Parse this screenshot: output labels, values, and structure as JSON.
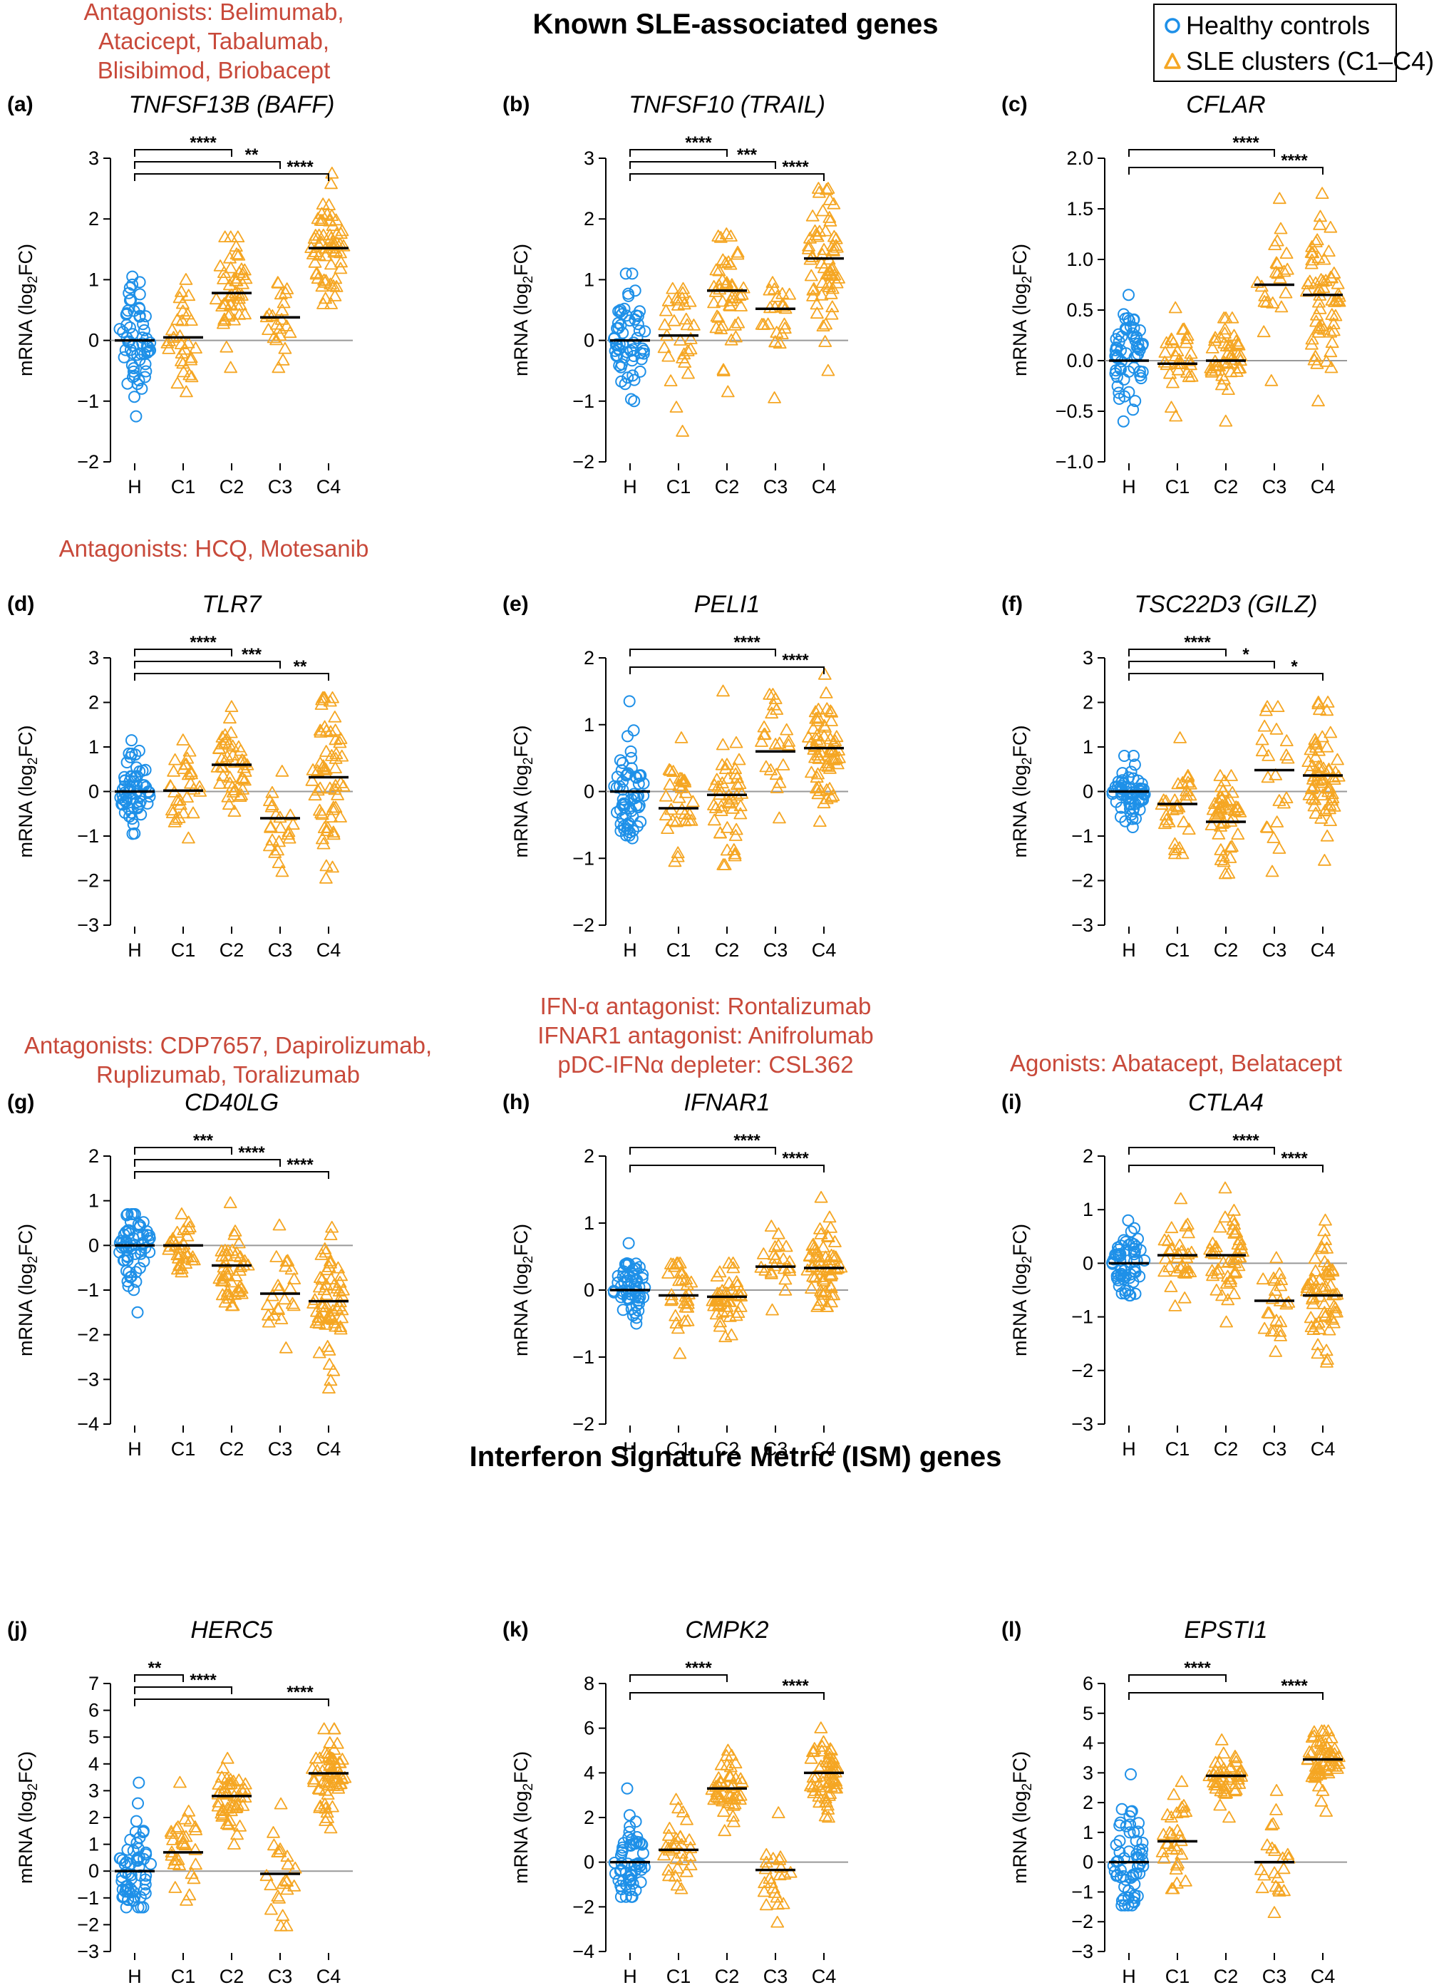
{
  "section_titles": {
    "known": "Known SLE-associated genes",
    "ism": "Interferon Signature Metric (ISM) genes"
  },
  "legend": {
    "healthy": "Healthy controls",
    "sle": "SLE clusters (C1–C4)"
  },
  "annotations": {
    "a": [
      "Antagonists: Belimumab,",
      "Atacicept, Tabalumab,",
      "Blisibimod, Briobacept"
    ],
    "d": [
      "Antagonists: HCQ, Motesanib"
    ],
    "g": [
      "Antagonists: CDP7657, Dapirolizumab,",
      "Ruplizumab, Toralizumab"
    ],
    "h": [
      "IFN-α antagonist: Rontalizumab",
      "IFNAR1 antagonist: Anifrolumab",
      "pDC-IFNα depleter: CSL362"
    ],
    "i": [
      "Agonists: Abatacept, Belatacept"
    ]
  },
  "colors": {
    "healthy": "#1e90e8",
    "sle": "#f5a623",
    "annotation": "#c8493a",
    "mean_line": "#000000",
    "zero_line": "#999999"
  },
  "chart_data": [
    {
      "type": "scatter",
      "panel": "(a)",
      "title": "TNFSF13B (BAFF)",
      "ylabel": "mRNA (log2FC)",
      "categories": [
        "H",
        "C1",
        "C2",
        "C3",
        "C4"
      ],
      "ylim": [
        -2,
        3
      ],
      "yticks": [
        -2,
        -1,
        0,
        1,
        2,
        3
      ],
      "means": [
        0.0,
        0.05,
        0.78,
        0.38,
        1.52
      ],
      "ranges": [
        [
          -1.25,
          1.05
        ],
        [
          -0.85,
          1.0
        ],
        [
          -0.45,
          1.7
        ],
        [
          -0.45,
          0.95
        ],
        [
          0.6,
          2.75
        ]
      ],
      "counts": [
        60,
        30,
        45,
        22,
        60
      ],
      "significance": [
        {
          "from": "H",
          "to": "C2",
          "label": "****"
        },
        {
          "from": "H",
          "to": "C3",
          "label": "**"
        },
        {
          "from": "H",
          "to": "C4",
          "label": "****"
        }
      ]
    },
    {
      "type": "scatter",
      "panel": "(b)",
      "title": "TNFSF10 (TRAIL)",
      "ylabel": "mRNA (log2FC)",
      "categories": [
        "H",
        "C1",
        "C2",
        "C3",
        "C4"
      ],
      "ylim": [
        -2,
        3
      ],
      "yticks": [
        -2,
        -1,
        0,
        1,
        2,
        3
      ],
      "means": [
        0.0,
        0.08,
        0.82,
        0.52,
        1.35
      ],
      "ranges": [
        [
          -1.0,
          1.1
        ],
        [
          -1.5,
          0.85
        ],
        [
          -0.85,
          1.75
        ],
        [
          -0.95,
          0.95
        ],
        [
          -0.5,
          2.5
        ]
      ],
      "counts": [
        60,
        30,
        45,
        22,
        60
      ],
      "significance": [
        {
          "from": "H",
          "to": "C2",
          "label": "****"
        },
        {
          "from": "H",
          "to": "C3",
          "label": "***"
        },
        {
          "from": "H",
          "to": "C4",
          "label": "****"
        }
      ]
    },
    {
      "type": "scatter",
      "panel": "(c)",
      "title": "CFLAR",
      "ylabel": "mRNA (log2FC)",
      "categories": [
        "H",
        "C1",
        "C2",
        "C3",
        "C4"
      ],
      "ylim": [
        -1.0,
        2.0
      ],
      "yticks": [
        -1.0,
        -0.5,
        0.0,
        0.5,
        1.0,
        1.5,
        2.0
      ],
      "ytick_labels": [
        "−1.0",
        "−0.5",
        "0.0",
        "0.5",
        "1.0",
        "1.5",
        "2.0"
      ],
      "means": [
        0.0,
        -0.03,
        0.0,
        0.75,
        0.65
      ],
      "ranges": [
        [
          -0.6,
          0.65
        ],
        [
          -0.55,
          0.52
        ],
        [
          -0.6,
          0.42
        ],
        [
          -0.2,
          1.6
        ],
        [
          -0.4,
          1.65
        ]
      ],
      "counts": [
        60,
        30,
        45,
        22,
        60
      ],
      "significance": [
        {
          "from": "H",
          "to": "C3",
          "label": "****"
        },
        {
          "from": "H",
          "to": "C4",
          "label": "****"
        }
      ]
    },
    {
      "type": "scatter",
      "panel": "(d)",
      "title": "TLR7",
      "ylabel": "mRNA (log2FC)",
      "categories": [
        "H",
        "C1",
        "C2",
        "C3",
        "C4"
      ],
      "ylim": [
        -3,
        3
      ],
      "yticks": [
        -3,
        -2,
        -1,
        0,
        1,
        2,
        3
      ],
      "means": [
        0.0,
        0.02,
        0.6,
        -0.6,
        0.32
      ],
      "ranges": [
        [
          -0.95,
          1.15
        ],
        [
          -1.05,
          1.15
        ],
        [
          -0.45,
          1.9
        ],
        [
          -1.8,
          0.45
        ],
        [
          -1.95,
          2.1
        ]
      ],
      "counts": [
        60,
        30,
        45,
        22,
        60
      ],
      "significance": [
        {
          "from": "H",
          "to": "C2",
          "label": "****"
        },
        {
          "from": "H",
          "to": "C3",
          "label": "***"
        },
        {
          "from": "H",
          "to": "C4",
          "label": "**"
        }
      ]
    },
    {
      "type": "scatter",
      "panel": "(e)",
      "title": "PELI1",
      "ylabel": "mRNA (log2FC)",
      "categories": [
        "H",
        "C1",
        "C2",
        "C3",
        "C4"
      ],
      "ylim": [
        -2,
        2
      ],
      "yticks": [
        -2,
        -1,
        0,
        1,
        2
      ],
      "means": [
        0.0,
        -0.25,
        -0.05,
        0.6,
        0.65
      ],
      "ranges": [
        [
          -0.7,
          1.35
        ],
        [
          -1.05,
          0.8
        ],
        [
          -1.1,
          1.5
        ],
        [
          -0.4,
          1.45
        ],
        [
          -0.45,
          1.75
        ]
      ],
      "counts": [
        60,
        30,
        45,
        22,
        60
      ],
      "significance": [
        {
          "from": "H",
          "to": "C3",
          "label": "****"
        },
        {
          "from": "H",
          "to": "C4",
          "label": "****"
        }
      ]
    },
    {
      "type": "scatter",
      "panel": "(f)",
      "title": "TSC22D3 (GILZ)",
      "ylabel": "mRNA (log2FC)",
      "categories": [
        "H",
        "C1",
        "C2",
        "C3",
        "C4"
      ],
      "ylim": [
        -3,
        3
      ],
      "yticks": [
        -3,
        -2,
        -1,
        0,
        1,
        2,
        3
      ],
      "means": [
        0.0,
        -0.28,
        -0.68,
        0.48,
        0.36
      ],
      "ranges": [
        [
          -0.8,
          0.8
        ],
        [
          -1.4,
          1.2
        ],
        [
          -1.85,
          0.35
        ],
        [
          -1.8,
          1.9
        ],
        [
          -1.55,
          2.0
        ]
      ],
      "counts": [
        60,
        30,
        45,
        22,
        60
      ],
      "significance": [
        {
          "from": "H",
          "to": "C2",
          "label": "****"
        },
        {
          "from": "H",
          "to": "C3",
          "label": "*"
        },
        {
          "from": "H",
          "to": "C4",
          "label": "*"
        }
      ]
    },
    {
      "type": "scatter",
      "panel": "(g)",
      "title": "CD40LG",
      "ylabel": "mRNA (log2FC)",
      "categories": [
        "H",
        "C1",
        "C2",
        "C3",
        "C4"
      ],
      "ylim": [
        -4,
        2
      ],
      "yticks": [
        -4,
        -3,
        -2,
        -1,
        0,
        1,
        2
      ],
      "means": [
        0.0,
        0.0,
        -0.45,
        -1.08,
        -1.25
      ],
      "ranges": [
        [
          -1.5,
          0.7
        ],
        [
          -0.6,
          0.7
        ],
        [
          -1.35,
          0.95
        ],
        [
          -2.3,
          0.45
        ],
        [
          -3.2,
          0.4
        ]
      ],
      "counts": [
        60,
        30,
        45,
        22,
        60
      ],
      "significance": [
        {
          "from": "H",
          "to": "C2",
          "label": "***"
        },
        {
          "from": "H",
          "to": "C3",
          "label": "****"
        },
        {
          "from": "H",
          "to": "C4",
          "label": "****"
        }
      ]
    },
    {
      "type": "scatter",
      "panel": "(h)",
      "title": "IFNAR1",
      "ylabel": "mRNA (log2FC)",
      "categories": [
        "H",
        "C1",
        "C2",
        "C3",
        "C4"
      ],
      "ylim": [
        -2,
        2
      ],
      "yticks": [
        -2,
        -1,
        0,
        1,
        2
      ],
      "means": [
        0.0,
        -0.08,
        -0.1,
        0.35,
        0.33
      ],
      "ranges": [
        [
          -0.5,
          0.7
        ],
        [
          -0.95,
          0.4
        ],
        [
          -0.7,
          0.4
        ],
        [
          -0.3,
          0.95
        ],
        [
          -0.25,
          1.38
        ]
      ],
      "counts": [
        60,
        30,
        45,
        22,
        60
      ],
      "significance": [
        {
          "from": "H",
          "to": "C3",
          "label": "****"
        },
        {
          "from": "H",
          "to": "C4",
          "label": "****"
        }
      ]
    },
    {
      "type": "scatter",
      "panel": "(i)",
      "title": "CTLA4",
      "ylabel": "mRNA (log2FC)",
      "categories": [
        "H",
        "C1",
        "C2",
        "C3",
        "C4"
      ],
      "ylim": [
        -3,
        2
      ],
      "yticks": [
        -3,
        -2,
        -1,
        0,
        1,
        2
      ],
      "means": [
        0.0,
        0.15,
        0.15,
        -0.7,
        -0.6
      ],
      "ranges": [
        [
          -0.6,
          0.8
        ],
        [
          -0.8,
          1.2
        ],
        [
          -1.1,
          1.4
        ],
        [
          -1.65,
          0.1
        ],
        [
          -1.85,
          0.8
        ]
      ],
      "counts": [
        60,
        30,
        45,
        22,
        60
      ],
      "significance": [
        {
          "from": "H",
          "to": "C3",
          "label": "****"
        },
        {
          "from": "H",
          "to": "C4",
          "label": "****"
        }
      ]
    },
    {
      "type": "scatter",
      "panel": "(j)",
      "title": "HERC5",
      "ylabel": "mRNA (log2FC)",
      "categories": [
        "H",
        "C1",
        "C2",
        "C3",
        "C4"
      ],
      "ylim": [
        -3,
        7
      ],
      "yticks": [
        -3,
        -2,
        -1,
        0,
        1,
        2,
        3,
        4,
        5,
        6,
        7
      ],
      "means": [
        0.0,
        0.7,
        2.8,
        -0.1,
        3.65
      ],
      "ranges": [
        [
          -1.35,
          3.3
        ],
        [
          -1.1,
          3.3
        ],
        [
          1.0,
          4.2
        ],
        [
          -2.05,
          2.5
        ],
        [
          1.6,
          5.3
        ]
      ],
      "counts": [
        60,
        30,
        45,
        22,
        60
      ],
      "significance": [
        {
          "from": "H",
          "to": "C1",
          "label": "**"
        },
        {
          "from": "H",
          "to": "C2",
          "label": "****"
        },
        {
          "from": "H",
          "to": "C4",
          "label": "****"
        }
      ]
    },
    {
      "type": "scatter",
      "panel": "(k)",
      "title": "CMPK2",
      "ylabel": "mRNA (log2FC)",
      "categories": [
        "H",
        "C1",
        "C2",
        "C3",
        "C4"
      ],
      "ylim": [
        -4,
        8
      ],
      "yticks": [
        -4,
        -2,
        0,
        2,
        4,
        6,
        8
      ],
      "means": [
        0.0,
        0.55,
        3.3,
        -0.35,
        4.0
      ],
      "ranges": [
        [
          -1.55,
          3.3
        ],
        [
          -1.2,
          2.8
        ],
        [
          1.4,
          5.0
        ],
        [
          -2.7,
          2.2
        ],
        [
          2.0,
          6.0
        ]
      ],
      "counts": [
        60,
        30,
        45,
        22,
        60
      ],
      "significance": [
        {
          "from": "H",
          "to": "C2",
          "label": "****"
        },
        {
          "from": "H",
          "to": "C4",
          "label": "****"
        }
      ]
    },
    {
      "type": "scatter",
      "panel": "(l)",
      "title": "EPSTI1",
      "ylabel": "mRNA (log2FC)",
      "categories": [
        "H",
        "C1",
        "C2",
        "C3",
        "C4"
      ],
      "ylim": [
        -3,
        6
      ],
      "yticks": [
        -3,
        -2,
        -1,
        0,
        1,
        2,
        3,
        4,
        5,
        6
      ],
      "means": [
        0.0,
        0.7,
        2.9,
        0.0,
        3.45
      ],
      "ranges": [
        [
          -1.45,
          2.95
        ],
        [
          -0.9,
          2.7
        ],
        [
          1.5,
          4.1
        ],
        [
          -1.7,
          2.4
        ],
        [
          1.7,
          4.4
        ]
      ],
      "counts": [
        60,
        30,
        45,
        22,
        60
      ],
      "significance": [
        {
          "from": "H",
          "to": "C2",
          "label": "****"
        },
        {
          "from": "H",
          "to": "C4",
          "label": "****"
        }
      ]
    }
  ]
}
